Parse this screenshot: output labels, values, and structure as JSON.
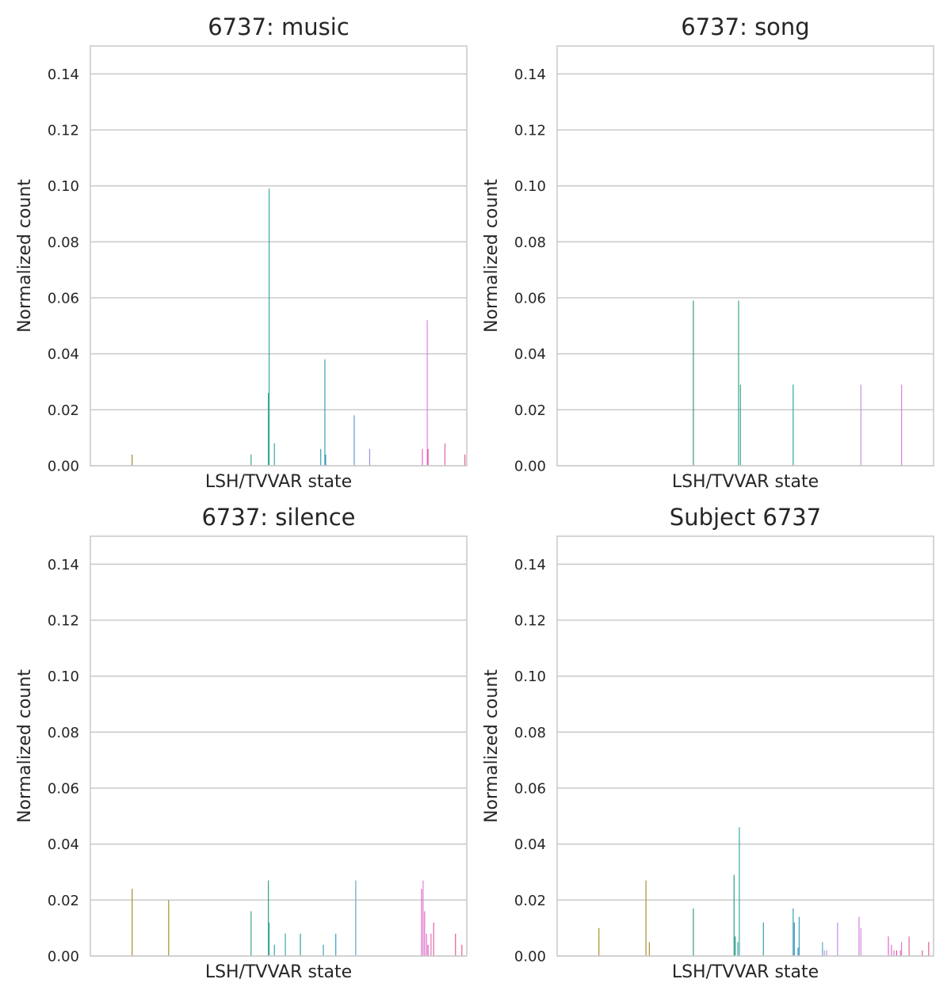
{
  "chart_data": [
    {
      "type": "bar",
      "title": "6737: music",
      "xlabel": "LSH/TVVAR state",
      "ylabel": "Normalized count",
      "ylim": [
        0,
        0.15
      ],
      "yticks": [
        "0.00",
        "0.02",
        "0.04",
        "0.06",
        "0.08",
        "0.10",
        "0.12",
        "0.14"
      ],
      "xtick_labels_shown": false,
      "grid": true,
      "x_position_range": [
        0,
        1
      ],
      "bars": [
        {
          "x": 0.111,
          "value": 0.004,
          "color": "#a08a2a"
        },
        {
          "x": 0.427,
          "value": 0.004,
          "color": "#3ba38d"
        },
        {
          "x": 0.473,
          "value": 0.026,
          "color": "#2ea08a"
        },
        {
          "x": 0.475,
          "value": 0.099,
          "color": "#38a8a0"
        },
        {
          "x": 0.489,
          "value": 0.008,
          "color": "#38a8a0"
        },
        {
          "x": 0.612,
          "value": 0.006,
          "color": "#3aa2b4"
        },
        {
          "x": 0.623,
          "value": 0.038,
          "color": "#3ba3b5"
        },
        {
          "x": 0.625,
          "value": 0.004,
          "color": "#2e8fc0"
        },
        {
          "x": 0.701,
          "value": 0.018,
          "color": "#5a9ad0"
        },
        {
          "x": 0.742,
          "value": 0.006,
          "color": "#9b8fe0"
        },
        {
          "x": 0.882,
          "value": 0.006,
          "color": "#e066c8"
        },
        {
          "x": 0.895,
          "value": 0.052,
          "color": "#de80e0"
        },
        {
          "x": 0.897,
          "value": 0.006,
          "color": "#e0489a"
        },
        {
          "x": 0.942,
          "value": 0.008,
          "color": "#e066a8"
        },
        {
          "x": 0.995,
          "value": 0.004,
          "color": "#e06090"
        }
      ]
    },
    {
      "type": "bar",
      "title": "6737: song",
      "xlabel": "LSH/TVVAR state",
      "ylabel": "Normalized count",
      "ylim": [
        0,
        0.15
      ],
      "yticks": [
        "0.00",
        "0.02",
        "0.04",
        "0.06",
        "0.08",
        "0.10",
        "0.12",
        "0.14"
      ],
      "xtick_labels_shown": false,
      "grid": true,
      "x_position_range": [
        0,
        1
      ],
      "bars": [
        {
          "x": 0.362,
          "value": 0.059,
          "color": "#3a9e70"
        },
        {
          "x": 0.482,
          "value": 0.059,
          "color": "#38a890"
        },
        {
          "x": 0.487,
          "value": 0.029,
          "color": "#3aa890"
        },
        {
          "x": 0.627,
          "value": 0.029,
          "color": "#38a2b2"
        },
        {
          "x": 0.807,
          "value": 0.029,
          "color": "#d090e0"
        },
        {
          "x": 0.915,
          "value": 0.029,
          "color": "#e080d8"
        }
      ]
    },
    {
      "type": "bar",
      "title": "6737: silence",
      "xlabel": "LSH/TVVAR state",
      "ylabel": "Normalized count",
      "ylim": [
        0,
        0.15
      ],
      "yticks": [
        "0.00",
        "0.02",
        "0.04",
        "0.06",
        "0.08",
        "0.10",
        "0.12",
        "0.14"
      ],
      "xtick_labels_shown": false,
      "grid": true,
      "x_position_range": [
        0,
        1
      ],
      "bars": [
        {
          "x": 0.111,
          "value": 0.024,
          "color": "#b08a2a"
        },
        {
          "x": 0.208,
          "value": 0.02,
          "color": "#a89030"
        },
        {
          "x": 0.427,
          "value": 0.016,
          "color": "#3aa08a"
        },
        {
          "x": 0.473,
          "value": 0.027,
          "color": "#30a08a"
        },
        {
          "x": 0.475,
          "value": 0.012,
          "color": "#38a8a0"
        },
        {
          "x": 0.489,
          "value": 0.004,
          "color": "#38a8a0"
        },
        {
          "x": 0.518,
          "value": 0.008,
          "color": "#38a8a0"
        },
        {
          "x": 0.558,
          "value": 0.008,
          "color": "#38a0a8"
        },
        {
          "x": 0.619,
          "value": 0.004,
          "color": "#3aa2b4"
        },
        {
          "x": 0.652,
          "value": 0.008,
          "color": "#3a9ec0"
        },
        {
          "x": 0.705,
          "value": 0.027,
          "color": "#5ea8c8"
        },
        {
          "x": 0.88,
          "value": 0.024,
          "color": "#e066c8"
        },
        {
          "x": 0.884,
          "value": 0.027,
          "color": "#de80e0"
        },
        {
          "x": 0.888,
          "value": 0.016,
          "color": "#e070c8"
        },
        {
          "x": 0.893,
          "value": 0.008,
          "color": "#e070c8"
        },
        {
          "x": 0.897,
          "value": 0.004,
          "color": "#e050a0"
        },
        {
          "x": 0.905,
          "value": 0.008,
          "color": "#e070b0"
        },
        {
          "x": 0.912,
          "value": 0.012,
          "color": "#e066a8"
        },
        {
          "x": 0.97,
          "value": 0.008,
          "color": "#e06090"
        },
        {
          "x": 0.987,
          "value": 0.004,
          "color": "#e06090"
        }
      ]
    },
    {
      "type": "bar",
      "title": "Subject 6737",
      "xlabel": "LSH/TVVAR state",
      "ylabel": "Normalized count",
      "ylim": [
        0,
        0.15
      ],
      "yticks": [
        "0.00",
        "0.02",
        "0.04",
        "0.06",
        "0.08",
        "0.10",
        "0.12",
        "0.14"
      ],
      "xtick_labels_shown": false,
      "grid": true,
      "x_position_range": [
        0,
        1
      ],
      "bars": [
        {
          "x": 0.111,
          "value": 0.01,
          "color": "#b08a2a"
        },
        {
          "x": 0.236,
          "value": 0.027,
          "color": "#a89030"
        },
        {
          "x": 0.245,
          "value": 0.005,
          "color": "#a89030"
        },
        {
          "x": 0.362,
          "value": 0.017,
          "color": "#3a9e70"
        },
        {
          "x": 0.47,
          "value": 0.029,
          "color": "#30a08a"
        },
        {
          "x": 0.473,
          "value": 0.007,
          "color": "#2e9888"
        },
        {
          "x": 0.48,
          "value": 0.005,
          "color": "#38a8a0"
        },
        {
          "x": 0.484,
          "value": 0.046,
          "color": "#38a8a0"
        },
        {
          "x": 0.548,
          "value": 0.012,
          "color": "#38a0a8"
        },
        {
          "x": 0.627,
          "value": 0.017,
          "color": "#38a2b2"
        },
        {
          "x": 0.63,
          "value": 0.012,
          "color": "#2e8fc0"
        },
        {
          "x": 0.64,
          "value": 0.003,
          "color": "#2e8fc0"
        },
        {
          "x": 0.643,
          "value": 0.014,
          "color": "#3a9ec0"
        },
        {
          "x": 0.705,
          "value": 0.005,
          "color": "#5ea8c8"
        },
        {
          "x": 0.71,
          "value": 0.002,
          "color": "#b0a0e0"
        },
        {
          "x": 0.716,
          "value": 0.002,
          "color": "#c090e0"
        },
        {
          "x": 0.745,
          "value": 0.012,
          "color": "#c090e0"
        },
        {
          "x": 0.802,
          "value": 0.014,
          "color": "#d080e0"
        },
        {
          "x": 0.807,
          "value": 0.01,
          "color": "#d090e0"
        },
        {
          "x": 0.88,
          "value": 0.007,
          "color": "#e066c8"
        },
        {
          "x": 0.888,
          "value": 0.004,
          "color": "#e070c8"
        },
        {
          "x": 0.895,
          "value": 0.002,
          "color": "#e070c8"
        },
        {
          "x": 0.902,
          "value": 0.002,
          "color": "#e050a0"
        },
        {
          "x": 0.912,
          "value": 0.002,
          "color": "#e066a8"
        },
        {
          "x": 0.915,
          "value": 0.005,
          "color": "#e080d8"
        },
        {
          "x": 0.935,
          "value": 0.007,
          "color": "#e066a8"
        },
        {
          "x": 0.97,
          "value": 0.002,
          "color": "#e06090"
        },
        {
          "x": 0.987,
          "value": 0.005,
          "color": "#e06090"
        }
      ]
    }
  ]
}
